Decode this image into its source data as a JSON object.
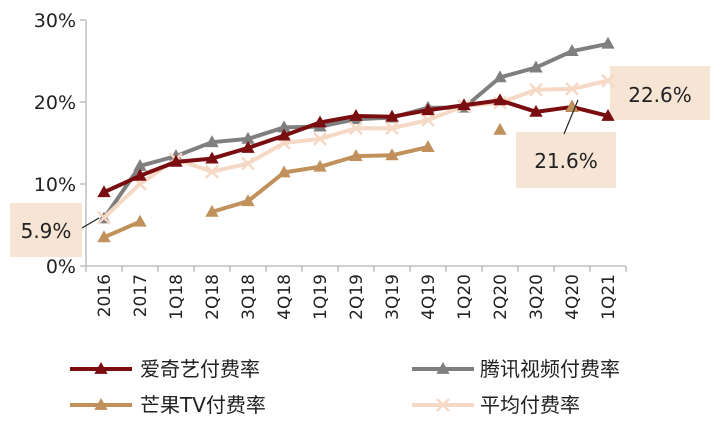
{
  "chart_data": {
    "type": "line",
    "title": "",
    "xlabel": "",
    "ylabel": "",
    "ylim": [
      0,
      30
    ],
    "yticks": [
      "0%",
      "10%",
      "20%",
      "30%"
    ],
    "grid": false,
    "legend_position": "bottom",
    "categories": [
      "2016",
      "2017",
      "1Q18",
      "2Q18",
      "3Q18",
      "4Q18",
      "1Q19",
      "2Q19",
      "3Q19",
      "4Q19",
      "1Q20",
      "2Q20",
      "3Q20",
      "4Q20",
      "1Q21"
    ],
    "series": [
      {
        "name": "爱奇艺付费率",
        "color": "#7a0d10",
        "marker": "triangle",
        "values": [
          9.0,
          11.0,
          12.7,
          13.1,
          14.4,
          15.9,
          17.5,
          18.3,
          18.2,
          19.0,
          19.6,
          20.2,
          18.8,
          19.4,
          18.3
        ]
      },
      {
        "name": "腾讯视频付费率",
        "color": "#7f7f7f",
        "marker": "triangle",
        "values": [
          5.8,
          12.2,
          13.4,
          15.1,
          15.5,
          16.9,
          17.0,
          17.9,
          18.1,
          19.3,
          19.3,
          23.0,
          24.2,
          26.2,
          27.1
        ]
      },
      {
        "name": "芒果TV付费率",
        "color": "#c0915a",
        "marker": "triangle",
        "values": [
          3.5,
          5.4,
          null,
          6.6,
          7.9,
          11.4,
          12.1,
          13.4,
          13.5,
          14.5,
          null,
          16.6,
          null,
          19.4,
          null
        ]
      },
      {
        "name": "平均付费率",
        "color": "#f6d9c5",
        "marker": "x",
        "values": [
          5.9,
          10.0,
          13.0,
          11.5,
          12.5,
          15.0,
          15.5,
          16.8,
          16.8,
          17.8,
          19.5,
          19.9,
          21.5,
          21.6,
          22.6
        ]
      }
    ],
    "annotations": [
      {
        "text": "5.9%",
        "series": "平均付费率",
        "category": "2016"
      },
      {
        "text": "22.6%",
        "series": "平均付费率",
        "category": "1Q21"
      },
      {
        "text": "21.6%",
        "series": "平均付费率",
        "category": "4Q20"
      }
    ]
  }
}
